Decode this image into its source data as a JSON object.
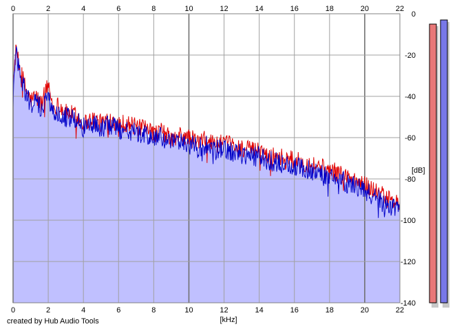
{
  "app": {
    "credit": "created by Hub Audio Tools"
  },
  "chart_data": {
    "type": "line",
    "title": "",
    "xlabel": "[kHz]",
    "ylabel": "[dB]",
    "xlim": [
      0,
      22
    ],
    "ylim": [
      -140,
      0
    ],
    "x_ticks": [
      0,
      2,
      4,
      6,
      8,
      10,
      12,
      14,
      16,
      18,
      20,
      22
    ],
    "y_ticks": [
      0,
      -20,
      -40,
      -60,
      -80,
      -100,
      -120,
      -140
    ],
    "grid": true,
    "legend": "none",
    "colors": {
      "red_series": "#e00000",
      "blue_series": "#0000c8",
      "fill": "#c0c0ff",
      "grid": "#a0a0a0",
      "meter_red": "#e87878",
      "meter_blue": "#7878e8"
    },
    "series": [
      {
        "color": "red",
        "x": [
          0,
          0.1,
          0.2,
          0.3,
          0.5,
          0.7,
          1.0,
          1.3,
          1.6,
          2.0,
          2.3,
          2.6,
          3.0,
          3.5,
          4.0,
          4.5,
          5.0,
          5.5,
          6.0,
          6.5,
          7.0,
          7.5,
          8.0,
          8.5,
          9.0,
          9.5,
          10.0,
          10.5,
          11.0,
          11.5,
          12.0,
          12.5,
          13.0,
          13.5,
          14.0,
          14.5,
          15.0,
          15.5,
          16.0,
          16.5,
          17.0,
          17.5,
          18.0,
          18.5,
          19.0,
          19.5,
          20.0,
          20.5,
          21.0,
          21.5,
          22.0
        ],
        "values": [
          -40,
          -22,
          -17,
          -24,
          -30,
          -36,
          -42,
          -40,
          -44,
          -34,
          -46,
          -44,
          -48,
          -49,
          -53,
          -51,
          -53,
          -51,
          -53,
          -53,
          -55,
          -56,
          -58,
          -57,
          -61,
          -59,
          -60,
          -62,
          -61,
          -63,
          -63,
          -64,
          -65,
          -66,
          -66,
          -68,
          -69,
          -70,
          -71,
          -72,
          -73,
          -74,
          -76,
          -77,
          -79,
          -81,
          -83,
          -85,
          -88,
          -91,
          -92
        ]
      },
      {
        "color": "blue",
        "x": [
          0,
          0.1,
          0.2,
          0.3,
          0.5,
          0.7,
          1.0,
          1.3,
          1.6,
          2.0,
          2.3,
          2.6,
          3.0,
          3.5,
          4.0,
          4.5,
          5.0,
          5.5,
          6.0,
          6.5,
          7.0,
          7.5,
          8.0,
          8.5,
          9.0,
          9.5,
          10.0,
          10.5,
          11.0,
          11.5,
          12.0,
          12.5,
          13.0,
          13.5,
          14.0,
          14.5,
          15.0,
          15.5,
          16.0,
          16.5,
          17.0,
          17.5,
          18.0,
          18.5,
          19.0,
          19.5,
          20.0,
          20.5,
          21.0,
          21.5,
          22.0
        ],
        "values": [
          -42,
          -24,
          -18,
          -26,
          -32,
          -38,
          -44,
          -43,
          -46,
          -40,
          -48,
          -47,
          -50,
          -51,
          -55,
          -53,
          -55,
          -54,
          -56,
          -56,
          -58,
          -59,
          -60,
          -60,
          -63,
          -62,
          -63,
          -65,
          -64,
          -66,
          -66,
          -67,
          -68,
          -69,
          -69,
          -71,
          -72,
          -73,
          -74,
          -75,
          -76,
          -77,
          -79,
          -80,
          -82,
          -84,
          -86,
          -88,
          -91,
          -93,
          -94
        ]
      }
    ],
    "level_meters": [
      {
        "color": "red",
        "value_db": -3
      },
      {
        "color": "blue",
        "value_db": -1
      }
    ]
  }
}
